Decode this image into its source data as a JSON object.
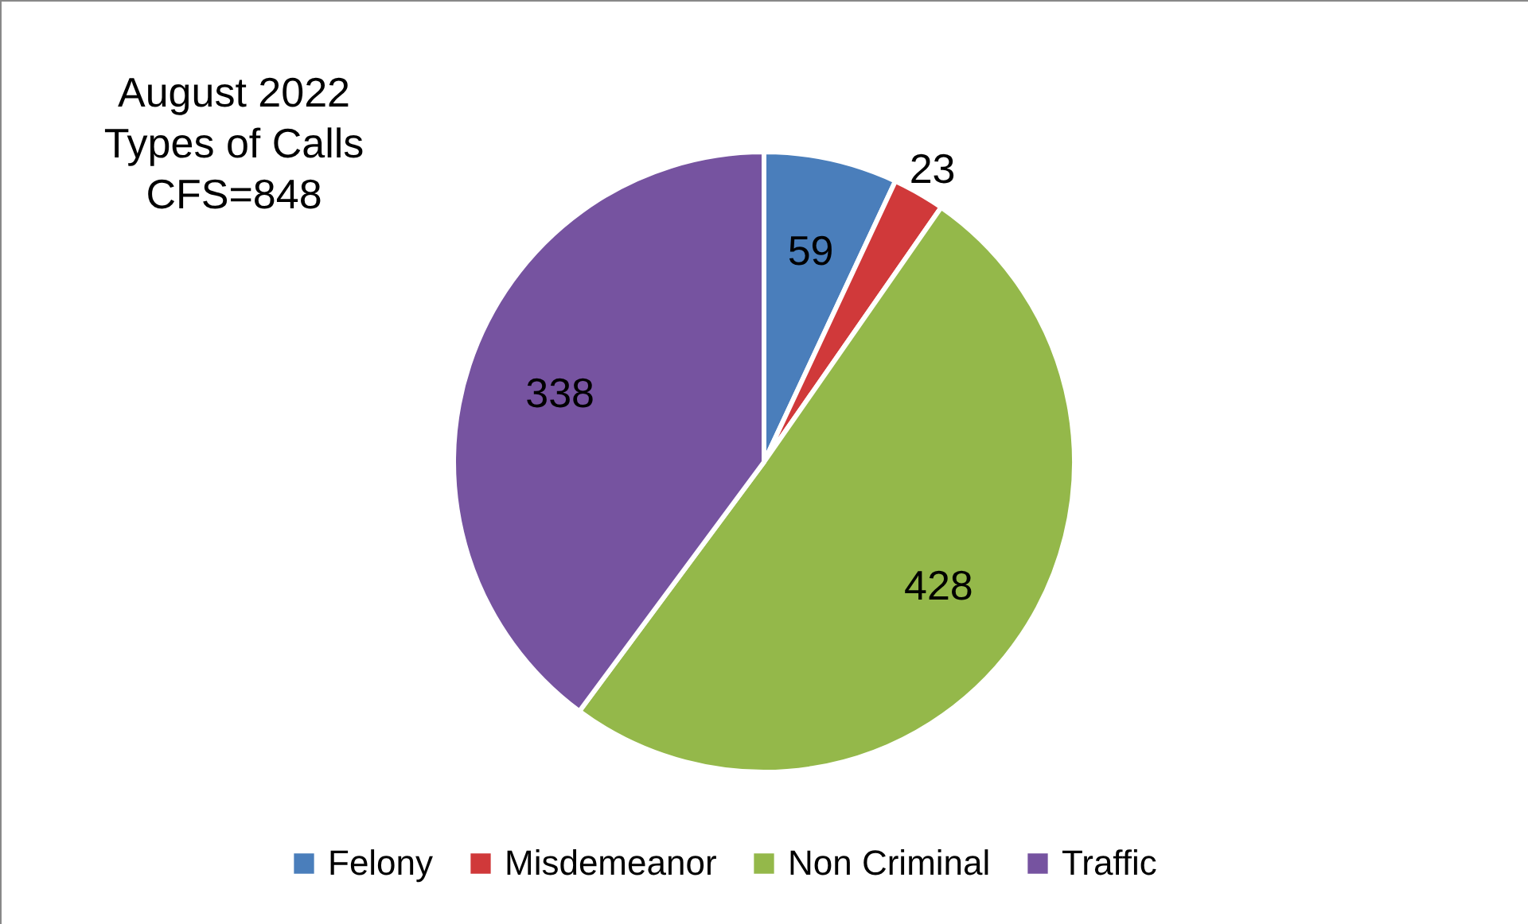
{
  "chart_data": {
    "type": "pie",
    "title": "August 2022",
    "subtitle": "Types of Calls",
    "annotations": [
      "CFS=848"
    ],
    "categories": [
      "Felony",
      "Misdemeanor",
      "Non Criminal",
      "Traffic"
    ],
    "values": [
      59,
      23,
      428,
      338
    ],
    "colors": [
      "#4a7ebb",
      "#d0393a",
      "#94b84a",
      "#7653a0"
    ],
    "data_labels": true,
    "legend": "bottom"
  }
}
